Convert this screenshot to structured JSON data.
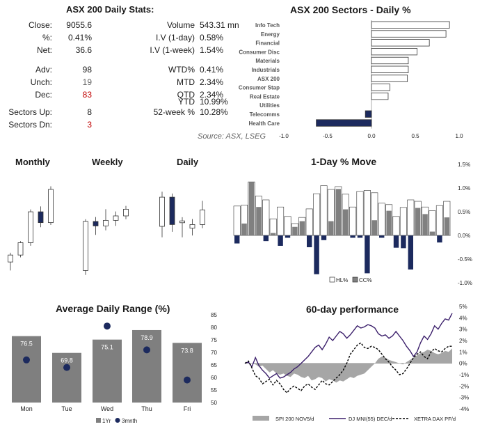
{
  "stats": {
    "title": "ASX 200 Daily Stats:",
    "rows_left": [
      {
        "label": "Close:",
        "value": "9055.6"
      },
      {
        "label": "%:",
        "value": "0.41%"
      },
      {
        "label": "Net:",
        "value": "36.6"
      },
      {
        "label": "Adv:",
        "value": "98"
      },
      {
        "label": "Unch:",
        "value": "19"
      },
      {
        "label": "Dec:",
        "value": "83"
      },
      {
        "label": "Sectors Up:",
        "value": "8"
      },
      {
        "label": "Sectors Dn:",
        "value": "3"
      }
    ],
    "rows_right": [
      {
        "label": "Volume",
        "value": "543.31 mn"
      },
      {
        "label": "I.V (1-day)",
        "value": "0.58%"
      },
      {
        "label": "I.V (1-week)",
        "value": "1.54%"
      },
      {
        "label": "WTD%",
        "value": "0.41%"
      },
      {
        "label": "MTD",
        "value": "2.34%"
      },
      {
        "label": "QTD",
        "value": "2.34%"
      },
      {
        "label": "YTD",
        "value": "10.99%"
      },
      {
        "label": "52-week %",
        "value": "10.28%"
      }
    ],
    "source": "Source: ASX, LSEG",
    "colors": {
      "negative": "#c00000",
      "muted": "#666666"
    }
  },
  "chart_data": [
    {
      "id": "sectors",
      "type": "bar",
      "orientation": "horizontal",
      "title": "ASX 200 Sectors - Daily %",
      "categories": [
        "Info Tech",
        "Energy",
        "Financial",
        "Consumer Disc",
        "Materials",
        "Industrials",
        "ASX 200",
        "Consumer Stap",
        "Real Estate",
        "Utilities",
        "Telecomms",
        "Health Care"
      ],
      "values": [
        0.89,
        0.85,
        0.66,
        0.52,
        0.42,
        0.42,
        0.41,
        0.21,
        0.19,
        0.0,
        -0.07,
        -0.63
      ],
      "xlim": [
        -1.0,
        1.0
      ],
      "xticks": [
        "-1.0",
        "-0.5",
        "0.0",
        "0.5",
        "1.0"
      ],
      "colors": {
        "positive": "#ffffff",
        "negative": "#1c2a5e",
        "stroke": "#333333"
      }
    },
    {
      "id": "candles",
      "type": "candlestick",
      "panels": [
        {
          "title": "Monthly",
          "candles": [
            {
              "o": 8120,
              "h": 8240,
              "l": 8010,
              "c": 8210
            },
            {
              "o": 8210,
              "h": 8390,
              "l": 8180,
              "c": 8370
            },
            {
              "o": 8370,
              "h": 8800,
              "l": 8330,
              "c": 8770
            },
            {
              "o": 8770,
              "h": 8840,
              "l": 8570,
              "c": 8630
            },
            {
              "o": 8630,
              "h": 9100,
              "l": 8600,
              "c": 9060
            }
          ]
        },
        {
          "title": "Weekly",
          "candles": [
            {
              "o": 8560,
              "h": 9020,
              "l": 8520,
              "c": 9000
            },
            {
              "o": 9000,
              "h": 9040,
              "l": 8880,
              "c": 8960
            },
            {
              "o": 8960,
              "h": 9110,
              "l": 8920,
              "c": 9010
            },
            {
              "o": 9010,
              "h": 9090,
              "l": 8960,
              "c": 9050
            },
            {
              "o": 9050,
              "h": 9140,
              "l": 9020,
              "c": 9110
            }
          ]
        },
        {
          "title": "Daily",
          "candles": [
            {
              "o": 8980,
              "h": 9075,
              "l": 8950,
              "c": 9060
            },
            {
              "o": 9060,
              "h": 9070,
              "l": 8965,
              "c": 8985
            },
            {
              "o": 8990,
              "h": 9005,
              "l": 8950,
              "c": 8995
            },
            {
              "o": 8975,
              "h": 9000,
              "l": 8955,
              "c": 8985
            },
            {
              "o": 8985,
              "h": 9050,
              "l": 8975,
              "c": 9025
            }
          ]
        }
      ],
      "colors": {
        "up": "#ffffff",
        "down": "#1c2a5e",
        "stroke": "#333333"
      }
    },
    {
      "id": "oneday",
      "type": "bar",
      "title": "1-Day % Move",
      "series": [
        {
          "name": "HL%",
          "values": [
            0.62,
            0.64,
            1.13,
            0.83,
            0.75,
            0.35,
            0.6,
            0.4,
            0.25,
            0.38,
            0.56,
            0.88,
            1.05,
            0.97,
            1.03,
            0.87,
            0.6,
            0.93,
            0.95,
            0.9,
            0.68,
            0.65,
            0.4,
            0.59,
            0.75,
            0.72,
            0.6,
            0.52,
            0.63,
            0.72
          ]
        },
        {
          "name": "CC%",
          "values": [
            -0.17,
            0.25,
            1.13,
            0.6,
            -0.12,
            0.05,
            -0.22,
            -0.05,
            0.18,
            0.3,
            -0.25,
            -0.82,
            -0.1,
            0.3,
            0.98,
            0.55,
            -0.05,
            -0.05,
            -0.8,
            0.32,
            -0.05,
            0.52,
            -0.26,
            -0.27,
            -0.72,
            0.58,
            0.45,
            0.08,
            -0.15,
            0.38
          ]
        }
      ],
      "ylim": [
        -1.0,
        1.5
      ],
      "yticks": [
        "1.5%",
        "1.0%",
        "0.5%",
        "0.0%",
        "-0.5%",
        "-1.0%"
      ],
      "colors": {
        "hl": "#ffffff",
        "cc_pos": "#808080",
        "cc_neg": "#1c2a5e",
        "stroke": "#333333"
      }
    },
    {
      "id": "adr",
      "type": "bar",
      "title": "Average Daily Range (%)",
      "categories": [
        "Mon",
        "Tue",
        "Wed",
        "Thu",
        "Fri"
      ],
      "series": [
        {
          "name": "1Yr",
          "values": [
            76.5,
            69.8,
            75.1,
            78.9,
            73.8
          ]
        },
        {
          "name": "3mnth",
          "values": [
            67,
            64,
            80.5,
            71,
            59
          ]
        }
      ],
      "ylim": [
        50,
        85
      ],
      "yticks": [
        "85",
        "80",
        "75",
        "70",
        "65",
        "60",
        "55",
        "50"
      ],
      "colors": {
        "bar": "#7f7f7f",
        "dot": "#1c2a5e",
        "label": "#ffffff"
      }
    },
    {
      "id": "perf60",
      "type": "line",
      "title": "60-day performance",
      "series": [
        {
          "name": "SPI 200 NOV5/d",
          "type": "area",
          "values": [
            0,
            0,
            0,
            -0.1,
            -0.3,
            -0.2,
            -0.5,
            -0.8,
            -0.6,
            -0.9,
            -1.0,
            -0.9,
            -1.1,
            -1.2,
            -0.9,
            -1.0,
            -1.2,
            -1.3,
            -1.1,
            -1.5,
            -1.4,
            -1.2,
            -1.3,
            -1.6,
            -1.4,
            -1.5,
            -1.7,
            -1.5,
            -1.6,
            -1.4,
            -1.2,
            -1.3,
            -1.1,
            -1.0,
            -0.9,
            -0.6,
            -0.3,
            0.0,
            0.4,
            0.6,
            0.5,
            0.3,
            0.2,
            0.1,
            0.0,
            -0.1,
            0.1,
            0.3,
            0.5,
            0.7,
            0.9,
            1.0,
            1.2,
            1.1,
            0.9,
            0.8,
            0.9,
            1.1,
            1.0,
            1.3
          ]
        },
        {
          "name": "DJ MNI(55) DEC/d",
          "type": "line",
          "values": [
            0,
            0.1,
            -0.3,
            0.5,
            -0.2,
            -0.6,
            -0.9,
            -1.3,
            -1.1,
            -0.9,
            -1.3,
            -1.2,
            -1.0,
            -0.8,
            -0.5,
            -0.3,
            0.0,
            0.3,
            0.6,
            1.0,
            1.4,
            1.6,
            1.2,
            1.7,
            2.3,
            2.0,
            2.4,
            2.8,
            2.6,
            2.2,
            2.5,
            2.9,
            3.3,
            3.1,
            3.2,
            3.4,
            3.3,
            3.1,
            2.6,
            2.4,
            2.5,
            2.2,
            2.4,
            2.8,
            2.4,
            2.0,
            1.5,
            1.1,
            0.6,
            1.0,
            1.8,
            2.4,
            2.1,
            2.6,
            3.3,
            3.0,
            3.5,
            3.9,
            3.8,
            4.4
          ]
        },
        {
          "name": "XETRA DAX PF/d",
          "type": "dashed",
          "values": [
            0,
            0.2,
            -0.4,
            -1.1,
            -1.3,
            -1.8,
            -1.6,
            -1.4,
            -1.9,
            -1.5,
            -1.8,
            -2.3,
            -2.6,
            -2.2,
            -2.0,
            -2.2,
            -2.4,
            -2.0,
            -1.8,
            -2.1,
            -2.3,
            -1.9,
            -1.5,
            -1.8,
            -1.9,
            -1.6,
            -1.3,
            -1.0,
            -0.6,
            0.0,
            0.8,
            1.2,
            1.6,
            1.8,
            1.4,
            1.3,
            1.5,
            1.4,
            1.2,
            0.8,
            0.4,
            0.1,
            -0.3,
            -0.6,
            -1.0,
            -0.9,
            -0.5,
            0.0,
            0.5,
            0.8,
            1.0,
            0.6,
            0.4,
            1.0,
            1.3,
            1.1,
            1.0,
            1.3,
            1.5,
            1.5
          ]
        }
      ],
      "ylim": [
        -4,
        5
      ],
      "yticks": [
        "5%",
        "4%",
        "3%",
        "2%",
        "1%",
        "0%",
        "-1%",
        "-2%",
        "-3%",
        "-4%"
      ],
      "colors": {
        "spi": "#a6a6a6",
        "dj": "#3b1f6b",
        "dax": "#000000"
      }
    }
  ]
}
